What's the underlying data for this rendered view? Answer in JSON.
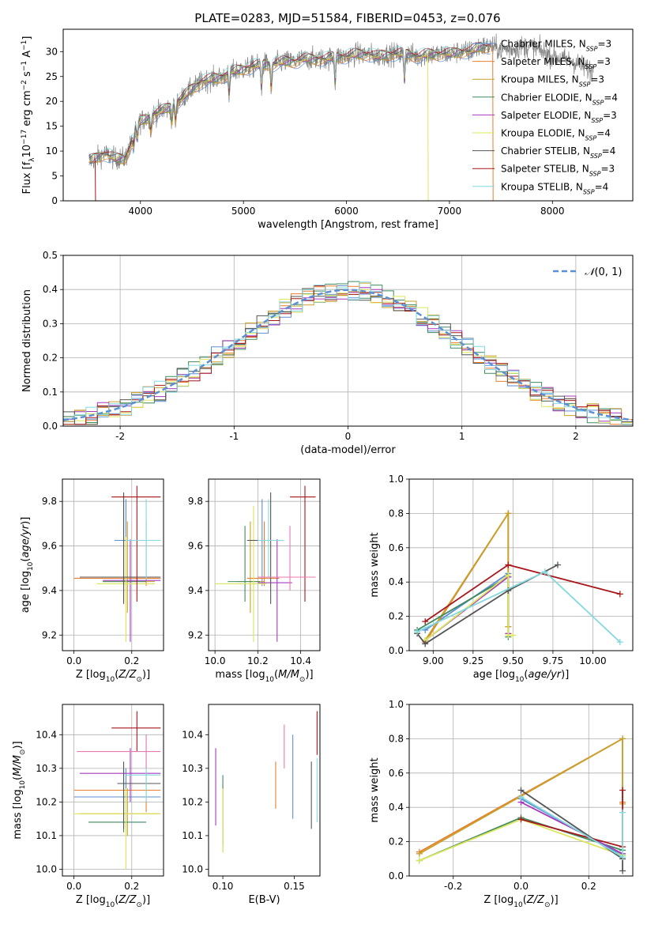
{
  "figure_title": "PLATE=0283, MJD=51584, FIBERID=0453, z=0.076",
  "legend_text_color": "#000000",
  "series_colors": {
    "data": "#808080",
    "Chabrier MILES": "#5b8fd6",
    "Salpeter MILES": "#e97f2e",
    "Kroupa MILES": "#c7a12c",
    "Chabrier ELODIE": "#3f8a5f",
    "Salpeter ELODIE": "#a63bbd",
    "Kroupa ELODIE": "#dbe65b",
    "Chabrier STELIB": "#555555",
    "Salpeter STELIB": "#a8171b",
    "Kroupa STELIB": "#82d9de",
    "pink": "#e87ab0"
  },
  "chart_data": [
    {
      "id": "spectrum",
      "type": "line",
      "xlabel": "wavelength [Angstrom, rest frame]",
      "ylabel": "Flux [f_λ10^-17 erg cm^-2 s^-1 A^-1]",
      "xlim": [
        3250,
        8780
      ],
      "ylim": [
        0,
        34.5
      ],
      "xticks": [
        4000,
        5000,
        6000,
        7000,
        8000
      ],
      "yticks": [
        0,
        5,
        10,
        15,
        20,
        25,
        30
      ],
      "grid": false,
      "legend_position": "right",
      "continuum": {
        "x": [
          3500,
          3560,
          3650,
          3750,
          3850,
          3900,
          3950,
          4000,
          4100,
          4200,
          4300,
          4400,
          4500,
          4600,
          4700,
          4800,
          4900,
          5000,
          5100,
          5200,
          5300,
          5400,
          5500,
          5600,
          5700,
          5800,
          5900,
          6000,
          6100,
          6200,
          6300,
          6400,
          6500,
          6600,
          6700,
          6800,
          6900,
          7000,
          7100,
          7200,
          7300,
          7400,
          7500,
          7600,
          7700,
          7800,
          7900,
          8000,
          8100,
          8200,
          8300,
          8400
        ],
        "y": [
          8,
          8.5,
          9.5,
          8.5,
          8.5,
          11,
          14,
          16,
          17,
          18,
          19,
          20.5,
          22.5,
          24,
          24.5,
          25,
          26,
          26.5,
          27,
          27.5,
          27.5,
          28,
          28,
          28.5,
          28.5,
          28.5,
          29,
          29,
          29.5,
          29.5,
          29,
          29.5,
          29.5,
          29.5,
          29,
          29.5,
          29.5,
          29.5,
          30,
          30,
          31,
          31,
          30.5,
          30.5,
          31,
          31,
          30,
          29,
          28.5,
          28,
          27,
          26
        ]
      },
      "data_x_range": [
        3500,
        8400
      ],
      "models_x_range": [
        3500,
        7400
      ],
      "dropouts": [
        {
          "x": 3560,
          "y": 0
        },
        {
          "x": 6790,
          "y": 0
        },
        {
          "x": 7420,
          "y": 0
        }
      ],
      "legend": [
        {
          "name": "Chabrier MILES",
          "nssp": "3"
        },
        {
          "name": "Salpeter MILES",
          "nssp": "3"
        },
        {
          "name": "Kroupa MILES",
          "nssp": "3"
        },
        {
          "name": "Chabrier ELODIE",
          "nssp": "4"
        },
        {
          "name": "Salpeter ELODIE",
          "nssp": "3"
        },
        {
          "name": "Kroupa ELODIE",
          "nssp": "4"
        },
        {
          "name": "Chabrier STELIB",
          "nssp": "4"
        },
        {
          "name": "Salpeter STELIB",
          "nssp": "3"
        },
        {
          "name": "Kroupa STELIB",
          "nssp": "4"
        }
      ]
    },
    {
      "id": "residuals",
      "type": "line",
      "xlabel": "(data-model)/error",
      "ylabel": "Normed distribution",
      "xlim": [
        -2.5,
        2.5
      ],
      "ylim": [
        0,
        0.5
      ],
      "xticks": [
        -2,
        -1,
        0,
        1,
        2
      ],
      "yticks": [
        0.0,
        0.1,
        0.2,
        0.3,
        0.4,
        0.5
      ],
      "grid": true,
      "legend_label": "N(0,1)",
      "legend_position": "top-right",
      "bin_width": 0.1,
      "series_order": [
        "Chabrier MILES",
        "Salpeter MILES",
        "Kroupa MILES",
        "Chabrier ELODIE",
        "Salpeter ELODIE",
        "Kroupa ELODIE",
        "Chabrier STELIB",
        "Salpeter STELIB",
        "Kroupa STELIB"
      ]
    },
    {
      "id": "age_vs_Z",
      "type": "scatter",
      "xlabel": "Z [log10(Z/Z_sun)]",
      "ylabel": "age [log10(age/yr)]",
      "xlim": [
        -0.04,
        0.31
      ],
      "ylim": [
        9.13,
        9.9
      ],
      "xticks": [
        0.0,
        0.2
      ],
      "yticks": [
        9.2,
        9.4,
        9.6,
        9.8
      ],
      "grid": true,
      "points": [
        {
          "s": "Chabrier MILES",
          "x": 0.18,
          "xe": [
            0.14,
            0.3
          ],
          "y": 9.625,
          "ye": [
            9.42,
            9.81
          ]
        },
        {
          "s": "Salpeter MILES",
          "x": 0.25,
          "xe": [
            0.0,
            0.3
          ],
          "y": 9.455,
          "ye": [
            9.42,
            9.71
          ]
        },
        {
          "s": "Kroupa MILES",
          "x": 0.185,
          "xe": [
            0.1,
            0.28
          ],
          "y": 9.44,
          "ye": [
            9.3,
            9.71
          ]
        },
        {
          "s": "Chabrier ELODIE",
          "x": 0.172,
          "xe": [
            0.1,
            0.25
          ],
          "y": 9.44,
          "ye": [
            9.35,
            9.83
          ]
        },
        {
          "s": "Salpeter ELODIE",
          "x": 0.195,
          "xe": [
            0.1,
            0.3
          ],
          "y": 9.445,
          "ye": [
            9.17,
            9.63
          ]
        },
        {
          "s": "Kroupa ELODIE",
          "x": 0.18,
          "xe": [
            0.08,
            0.28
          ],
          "y": 9.43,
          "ye": [
            9.17,
            9.64
          ]
        },
        {
          "s": "Chabrier STELIB",
          "x": 0.172,
          "xe": [
            0.02,
            0.3
          ],
          "y": 9.46,
          "ye": [
            9.34,
            9.84
          ]
        },
        {
          "s": "Salpeter STELIB",
          "x": 0.218,
          "xe": [
            0.13,
            0.3
          ],
          "y": 9.82,
          "ye": [
            9.35,
            9.87
          ]
        },
        {
          "s": "Kroupa STELIB",
          "x": 0.25,
          "xe": [
            0.18,
            0.3
          ],
          "y": 9.625,
          "ye": [
            9.45,
            9.81
          ]
        }
      ]
    },
    {
      "id": "age_vs_mass",
      "type": "scatter",
      "xlabel": "mass [log10(M/M_sun)]",
      "ylabel": "",
      "xlim": [
        9.97,
        10.49
      ],
      "ylim": [
        9.13,
        9.9
      ],
      "xticks": [
        10.0,
        10.2,
        10.4
      ],
      "yticks": [
        9.2,
        9.4,
        9.6,
        9.8
      ],
      "grid": true,
      "points": [
        {
          "s": "Chabrier MILES",
          "x": 10.22,
          "xe": [
            10.15,
            10.3
          ],
          "y": 9.625,
          "ye": [
            9.42,
            9.81
          ]
        },
        {
          "s": "Salpeter MILES",
          "x": 10.23,
          "xe": [
            10.15,
            10.3
          ],
          "y": 9.455,
          "ye": [
            9.42,
            9.71
          ]
        },
        {
          "s": "Kroupa MILES",
          "x": 10.165,
          "xe": [
            10.1,
            10.23
          ],
          "y": 9.44,
          "ye": [
            9.3,
            9.71
          ]
        },
        {
          "s": "Chabrier ELODIE",
          "x": 10.14,
          "xe": [
            10.06,
            10.21
          ],
          "y": 9.44,
          "ye": [
            9.35,
            9.69
          ]
        },
        {
          "s": "Salpeter ELODIE",
          "x": 10.29,
          "xe": [
            10.2,
            10.36
          ],
          "y": 9.435,
          "ye": [
            9.17,
            9.63
          ]
        },
        {
          "s": "Kroupa ELODIE",
          "x": 10.18,
          "xe": [
            10.0,
            10.24
          ],
          "y": 9.43,
          "ye": [
            9.17,
            9.78
          ]
        },
        {
          "s": "Chabrier STELIB",
          "x": 10.26,
          "xe": [
            10.15,
            10.32
          ],
          "y": 9.625,
          "ye": [
            9.34,
            9.84
          ]
        },
        {
          "s": "Salpeter STELIB",
          "x": 10.42,
          "xe": [
            10.35,
            10.47
          ],
          "y": 9.82,
          "ye": [
            9.35,
            9.87
          ]
        },
        {
          "s": "Kroupa STELIB",
          "x": 10.25,
          "xe": [
            10.2,
            10.32
          ],
          "y": 9.625,
          "ye": [
            9.45,
            9.81
          ]
        },
        {
          "s": "pink",
          "x": 10.35,
          "xe": [
            10.2,
            10.47
          ],
          "y": 9.46,
          "ye": [
            9.4,
            9.69
          ]
        }
      ]
    },
    {
      "id": "massweight_vs_age",
      "type": "line",
      "xlabel": "age [log10(age/yr)]",
      "ylabel": "mass weight",
      "xlim": [
        8.85,
        10.25
      ],
      "ylim": [
        0.0,
        1.0
      ],
      "xticks": [
        9.0,
        9.25,
        9.5,
        9.75,
        10.0
      ],
      "yticks": [
        0.0,
        0.2,
        0.4,
        0.6,
        0.8,
        1.0
      ],
      "grid": true,
      "series": [
        {
          "name": "Chabrier MILES",
          "x": [
            8.95,
            9.47
          ],
          "y": [
            0.12,
            0.45
          ]
        },
        {
          "name": "Salpeter MILES",
          "x": [
            8.95,
            9.47,
            9.47
          ],
          "y": [
            0.05,
            0.8,
            0.14
          ]
        },
        {
          "name": "Kroupa MILES",
          "x": [
            8.95,
            9.47,
            9.47
          ],
          "y": [
            0.06,
            0.8,
            0.14
          ]
        },
        {
          "name": "Chabrier ELODIE",
          "x": [
            8.9,
            9.47,
            9.47
          ],
          "y": [
            0.12,
            0.43,
            0.08
          ]
        },
        {
          "name": "Salpeter ELODIE",
          "x": [
            8.95,
            9.47,
            9.47
          ],
          "y": [
            0.06,
            0.43,
            0.1
          ]
        },
        {
          "name": "Kroupa ELODIE",
          "x": [
            8.95,
            9.47,
            9.47,
            9.5
          ],
          "y": [
            0.06,
            0.44,
            0.09,
            0.09
          ]
        },
        {
          "name": "Chabrier STELIB",
          "x": [
            8.9,
            8.95,
            9.47,
            9.78
          ],
          "y": [
            0.1,
            0.04,
            0.35,
            0.5
          ]
        },
        {
          "name": "Salpeter STELIB",
          "x": [
            8.95,
            9.47,
            10.17
          ],
          "y": [
            0.17,
            0.5,
            0.33
          ]
        },
        {
          "name": "Kroupa STELIB",
          "x": [
            8.9,
            9.7,
            10.17
          ],
          "y": [
            0.11,
            0.46,
            0.05
          ]
        }
      ]
    },
    {
      "id": "mass_vs_Z",
      "type": "scatter",
      "xlabel": "Z [log10(Z/Z_sun)]",
      "ylabel": "mass [log10(M/M_sun)]",
      "xlim": [
        -0.04,
        0.31
      ],
      "ylim": [
        9.98,
        10.49
      ],
      "xticks": [
        0.0,
        0.2
      ],
      "yticks": [
        10.0,
        10.1,
        10.2,
        10.3,
        10.4
      ],
      "grid": true,
      "points": [
        {
          "s": "Chabrier MILES",
          "x": 0.18,
          "xe": [
            0.0,
            0.3
          ],
          "y": 10.215,
          "ye": [
            10.12,
            10.3
          ]
        },
        {
          "s": "Salpeter MILES",
          "x": 0.25,
          "xe": [
            0.0,
            0.3
          ],
          "y": 10.235,
          "ye": [
            10.17,
            10.29
          ]
        },
        {
          "s": "Kroupa MILES",
          "x": 0.185,
          "xe": [
            0.02,
            0.3
          ],
          "y": 10.165,
          "ye": [
            10.1,
            10.24
          ]
        },
        {
          "s": "Chabrier ELODIE",
          "x": 0.172,
          "xe": [
            0.05,
            0.25
          ],
          "y": 10.14,
          "ye": [
            10.11,
            10.3
          ]
        },
        {
          "s": "Salpeter ELODIE",
          "x": 0.195,
          "xe": [
            0.02,
            0.3
          ],
          "y": 10.285,
          "ye": [
            10.2,
            10.36
          ]
        },
        {
          "s": "Kroupa ELODIE",
          "x": 0.18,
          "xe": [
            0.0,
            0.3
          ],
          "y": 10.165,
          "ye": [
            10.0,
            10.24
          ]
        },
        {
          "s": "Chabrier STELIB",
          "x": 0.172,
          "xe": [
            0.15,
            0.3
          ],
          "y": 10.255,
          "ye": [
            10.12,
            10.32
          ]
        },
        {
          "s": "Salpeter STELIB",
          "x": 0.218,
          "xe": [
            0.13,
            0.3
          ],
          "y": 10.42,
          "ye": [
            10.35,
            10.47
          ]
        },
        {
          "s": "Kroupa STELIB",
          "x": 0.25,
          "xe": [
            0.18,
            0.3
          ],
          "y": 10.28,
          "ye": [
            10.2,
            10.4
          ]
        },
        {
          "s": "pink",
          "x": 0.25,
          "xe": [
            0.01,
            0.3
          ],
          "y": 10.35,
          "ye": [
            10.3,
            10.4
          ]
        }
      ]
    },
    {
      "id": "mass_vs_EBV",
      "type": "scatter",
      "xlabel": "E(B-V)",
      "ylabel": "",
      "xlim": [
        0.09,
        0.168
      ],
      "ylim": [
        9.98,
        10.49
      ],
      "xticks": [
        0.1,
        0.15
      ],
      "yticks": [
        10.0,
        10.1,
        10.2,
        10.3,
        10.4
      ],
      "grid": false,
      "points": [
        {
          "s": "Chabrier MILES",
          "x": 0.149,
          "y": 10.275,
          "ye": [
            10.15,
            10.4
          ]
        },
        {
          "s": "Salpeter MILES",
          "x": 0.137,
          "y": 10.25,
          "ye": [
            10.18,
            10.32
          ]
        },
        {
          "s": "Kroupa MILES",
          "x": 0.1,
          "y": 10.15,
          "ye": [
            10.05,
            10.25
          ]
        },
        {
          "s": "Chabrier ELODIE",
          "x": 0.1,
          "y": 10.155,
          "ye": [
            10.07,
            10.28
          ]
        },
        {
          "s": "Salpeter ELODIE",
          "x": 0.095,
          "y": 10.24,
          "ye": [
            10.13,
            10.36
          ]
        },
        {
          "s": "Kroupa ELODIE",
          "x": 0.1,
          "y": 10.14,
          "ye": [
            10.05,
            10.24
          ]
        },
        {
          "s": "Chabrier STELIB",
          "x": 0.162,
          "y": 10.22,
          "ye": [
            10.12,
            10.32
          ]
        },
        {
          "s": "Salpeter STELIB",
          "x": 0.166,
          "y": 10.405,
          "ye": [
            10.34,
            10.47
          ]
        },
        {
          "s": "Kroupa STELIB",
          "x": 0.166,
          "y": 10.24,
          "ye": [
            10.14,
            10.33
          ]
        },
        {
          "s": "pink",
          "x": 0.143,
          "y": 10.37,
          "ye": [
            10.3,
            10.43
          ]
        }
      ]
    },
    {
      "id": "massweight_vs_Z",
      "type": "line",
      "xlabel": "Z [log10(Z/Z_sun)]",
      "ylabel": "mass weight",
      "xlim": [
        -0.33,
        0.33
      ],
      "ylim": [
        0.0,
        1.0
      ],
      "xticks": [
        -0.2,
        0.0,
        0.2
      ],
      "yticks": [
        0.0,
        0.2,
        0.4,
        0.6,
        0.8,
        1.0
      ],
      "grid": true,
      "series": [
        {
          "name": "Chabrier MILES",
          "x": [
            0.0,
            0.3
          ],
          "y": [
            0.45,
            0.12
          ]
        },
        {
          "name": "Salpeter MILES",
          "x": [
            -0.3,
            0.3,
            0.3
          ],
          "y": [
            0.14,
            0.8,
            0.43
          ]
        },
        {
          "name": "Kroupa MILES",
          "x": [
            -0.3,
            0.3,
            0.3
          ],
          "y": [
            0.13,
            0.8,
            0.42
          ]
        },
        {
          "name": "Chabrier ELODIE",
          "x": [
            -0.3,
            0.0,
            0.3
          ],
          "y": [
            0.09,
            0.34,
            0.15
          ]
        },
        {
          "name": "Salpeter ELODIE",
          "x": [
            0.0,
            0.3
          ],
          "y": [
            0.43,
            0.13
          ]
        },
        {
          "name": "Kroupa ELODIE",
          "x": [
            -0.3,
            0.0,
            0.3
          ],
          "y": [
            0.09,
            0.33,
            0.12
          ]
        },
        {
          "name": "Chabrier STELIB",
          "x": [
            0.0,
            0.3,
            0.3
          ],
          "y": [
            0.5,
            0.1,
            0.03
          ]
        },
        {
          "name": "Salpeter STELIB",
          "x": [
            0.0,
            0.3,
            0.3
          ],
          "y": [
            0.33,
            0.17,
            0.5
          ]
        },
        {
          "name": "Kroupa STELIB",
          "x": [
            0.0,
            0.3,
            0.3
          ],
          "y": [
            0.46,
            0.11,
            0.37
          ]
        }
      ]
    }
  ]
}
